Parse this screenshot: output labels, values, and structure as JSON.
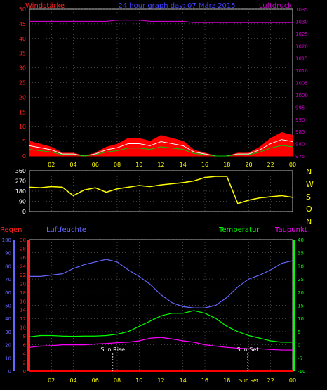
{
  "title": "24 hour graph day: 07 März 2015",
  "x_ticks": [
    "02",
    "04",
    "06",
    "08",
    "10",
    "12",
    "14",
    "16",
    "18",
    "20",
    "22",
    "00"
  ],
  "x_ticks_bottom": [
    "02",
    "04",
    "06",
    "08",
    "10",
    "12",
    "14",
    "16",
    "18",
    "Sun Set",
    "22",
    "00"
  ],
  "colors": {
    "wind": "#ff0000",
    "gust": "#ffffff",
    "wind_avg": "#00cc00",
    "pressure": "#cc00cc",
    "direction": "#ffff00",
    "humidity": "#6666ff",
    "temperature": "#00ff00",
    "dewpoint": "#ff00ff",
    "rain": "#ff0000",
    "grid": "#808080",
    "axis_red": "#ff2020",
    "axis_magenta": "#cc00cc",
    "axis_yellow": "#ffff00",
    "axis_blue": "#6666ff",
    "axis_green": "#00ff00"
  },
  "chart_data": [
    {
      "type": "area",
      "title": "24 hour graph day: 07 März 2015",
      "ylabel": "Windstärke",
      "y2label": "Luftdruck",
      "ylim": [
        0,
        50
      ],
      "y_ticks": [
        0,
        5,
        10,
        15,
        20,
        25,
        30,
        35,
        40,
        45,
        50
      ],
      "y2lim": [
        975,
        1035
      ],
      "y2_ticks": [
        975,
        980,
        985,
        990,
        995,
        1000,
        1005,
        1010,
        1015,
        1020,
        1025,
        1030,
        1035
      ],
      "x": [
        0,
        1,
        2,
        3,
        4,
        5,
        6,
        7,
        8,
        9,
        10,
        11,
        12,
        13,
        14,
        15,
        16,
        17,
        18,
        19,
        20,
        21,
        22,
        23,
        24
      ],
      "series": [
        {
          "name": "Windstärke",
          "values": [
            5,
            4,
            3,
            1,
            1,
            0,
            1,
            3,
            4,
            6,
            6,
            5,
            7,
            6,
            5,
            2,
            1,
            0,
            0,
            1,
            1,
            3,
            6,
            8,
            7
          ]
        },
        {
          "name": "Luftdruck",
          "values": [
            1030,
            1030,
            1030,
            1030,
            1030,
            1030,
            1030,
            1030,
            1030.5,
            1030.5,
            1030.5,
            1030,
            1030,
            1030,
            1030,
            1029.5,
            1029.5,
            1029.5,
            1029.5,
            1029.5,
            1029.5,
            1029.5,
            1029.5,
            1029.5,
            1029.5
          ]
        }
      ]
    },
    {
      "type": "line",
      "ylim": [
        0,
        360
      ],
      "y_ticks": [
        0,
        90,
        180,
        270,
        360
      ],
      "right_labels": [
        "N",
        "W",
        "S",
        "O",
        "N"
      ],
      "x": [
        0,
        1,
        2,
        3,
        4,
        5,
        6,
        7,
        8,
        9,
        10,
        11,
        12,
        13,
        14,
        15,
        16,
        17,
        18,
        19,
        20,
        21,
        22,
        23,
        24
      ],
      "series": [
        {
          "name": "direction",
          "values": [
            215,
            210,
            220,
            215,
            140,
            190,
            210,
            170,
            200,
            215,
            230,
            220,
            235,
            245,
            255,
            270,
            300,
            310,
            310,
            70,
            100,
            120,
            130,
            140,
            125
          ]
        }
      ]
    },
    {
      "type": "line",
      "y1label": "Regen",
      "y2label": "Luftfeuchte",
      "y3label": "Temperatur",
      "y4label": "Taupunkt",
      "rain_ticks": [
        0,
        2,
        4,
        6,
        8,
        10,
        12,
        14,
        16,
        18,
        20,
        22,
        24,
        26,
        28,
        30
      ],
      "humidity_ticks": [
        0,
        10,
        20,
        30,
        40,
        50,
        60,
        70,
        80,
        90,
        100
      ],
      "temp_ticks": [
        -10,
        -5,
        0,
        5,
        10,
        15,
        20,
        25,
        30,
        35,
        40
      ],
      "temp_lim": [
        -10,
        40
      ],
      "annotations": [
        "Sun Rise",
        "Sun Set"
      ],
      "x": [
        0,
        1,
        2,
        3,
        4,
        5,
        6,
        7,
        8,
        9,
        10,
        11,
        12,
        13,
        14,
        15,
        16,
        17,
        18,
        19,
        20,
        21,
        22,
        23,
        24
      ],
      "series": [
        {
          "name": "Luftfeuchte",
          "values": [
            72,
            72,
            73,
            74,
            78,
            81,
            83,
            85,
            83,
            77,
            72,
            66,
            58,
            52,
            49,
            48,
            48,
            50,
            56,
            64,
            70,
            73,
            77,
            82,
            84
          ]
        },
        {
          "name": "Temperatur",
          "values": [
            3,
            3.5,
            3.5,
            3.3,
            3.2,
            3.3,
            3.3,
            3.5,
            4,
            5,
            7,
            9,
            11,
            12,
            12,
            13,
            12,
            10,
            7,
            5,
            3.5,
            2.5,
            1.5,
            1,
            1
          ]
        },
        {
          "name": "Taupunkt",
          "values": [
            -1,
            -0.5,
            -0.3,
            0,
            0,
            0,
            0.3,
            0.5,
            0.8,
            1,
            1.5,
            2.5,
            2.8,
            2.2,
            1.5,
            1,
            0,
            -0.5,
            -1,
            -1.3,
            -1.5,
            -1.5,
            -1.8,
            -2,
            -2
          ]
        },
        {
          "name": "Regen",
          "values": [
            0,
            0,
            0,
            0,
            0,
            0,
            0,
            0,
            0,
            0,
            0,
            0,
            0,
            0,
            0,
            0,
            0,
            0,
            0,
            0,
            0,
            0,
            0,
            0,
            0
          ]
        }
      ]
    }
  ]
}
